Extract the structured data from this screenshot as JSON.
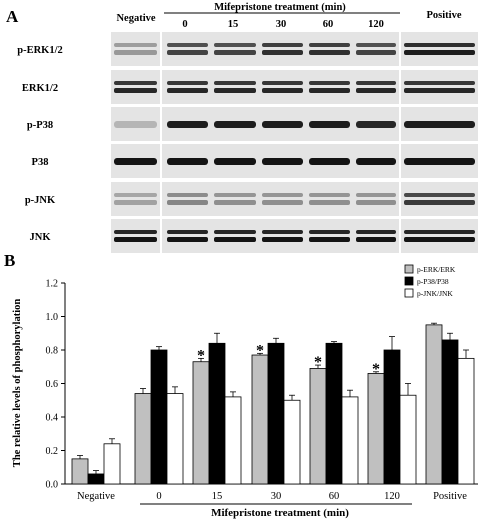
{
  "panel_a": {
    "label": "A",
    "header_negative": "Negative",
    "header_treatment": "Mifepristone treatment (min)",
    "header_positive": "Positive",
    "time_labels": [
      "0",
      "15",
      "30",
      "60",
      "120"
    ],
    "blot_rows": [
      {
        "label": "p-ERK1/2",
        "group": 0,
        "signal_negative": 0.25,
        "signal_lanes": [
          0.7,
          0.7,
          0.8,
          0.8,
          0.7
        ],
        "signal_positive": 0.9,
        "double": true
      },
      {
        "label": "ERK1/2",
        "group": 0,
        "signal_negative": 0.85,
        "signal_lanes": [
          0.85,
          0.85,
          0.85,
          0.85,
          0.85
        ],
        "signal_positive": 0.85,
        "double": true
      },
      {
        "label": "p-P38",
        "group": 1,
        "signal_negative": 0.1,
        "signal_lanes": [
          0.9,
          0.9,
          0.9,
          0.9,
          0.85
        ],
        "signal_positive": 0.9,
        "double": false
      },
      {
        "label": "P38",
        "group": 1,
        "signal_negative": 0.95,
        "signal_lanes": [
          0.95,
          0.95,
          0.95,
          0.95,
          0.95
        ],
        "signal_positive": 0.95,
        "double": false
      },
      {
        "label": "p-JNK",
        "group": 2,
        "signal_negative": 0.2,
        "signal_lanes": [
          0.35,
          0.3,
          0.3,
          0.3,
          0.3
        ],
        "signal_positive": 0.75,
        "double": true
      },
      {
        "label": "JNK",
        "group": 2,
        "signal_negative": 0.95,
        "signal_lanes": [
          0.95,
          0.95,
          0.95,
          0.95,
          0.95
        ],
        "signal_positive": 0.95,
        "double": true
      }
    ]
  },
  "panel_b": {
    "label": "B",
    "chart_data": {
      "type": "bar",
      "ylabel": "The relative levels of phosphorylation",
      "xlabel": "Mifepristone treatment  (min)",
      "categories": [
        "Negative",
        "0",
        "15",
        "30",
        "60",
        "120",
        "Positive"
      ],
      "ylim": [
        0,
        1.2
      ],
      "yticks": [
        "0.0",
        "0.2",
        "0.4",
        "0.6",
        "0.8",
        "1.0",
        "1.2"
      ],
      "legend_position": "top-right",
      "series": [
        {
          "name": "p-ERK/ERK",
          "color": "#c0c0c0",
          "values": [
            0.15,
            0.54,
            0.73,
            0.77,
            0.69,
            0.66,
            0.95
          ],
          "errors": [
            0.02,
            0.03,
            0.02,
            0.01,
            0.02,
            0.01,
            0.01
          ]
        },
        {
          "name": "p-P38/P38",
          "color": "#000000",
          "values": [
            0.06,
            0.8,
            0.84,
            0.84,
            0.84,
            0.8,
            0.86
          ],
          "errors": [
            0.02,
            0.02,
            0.06,
            0.03,
            0.01,
            0.08,
            0.04
          ]
        },
        {
          "name": "p-JNK/JNK",
          "color": "#ffffff",
          "values": [
            0.24,
            0.54,
            0.52,
            0.5,
            0.52,
            0.53,
            0.75
          ],
          "errors": [
            0.03,
            0.04,
            0.03,
            0.03,
            0.04,
            0.07,
            0.05
          ]
        }
      ],
      "significant": [
        false,
        false,
        true,
        true,
        true,
        true,
        false
      ],
      "significance_mark": "*"
    }
  }
}
